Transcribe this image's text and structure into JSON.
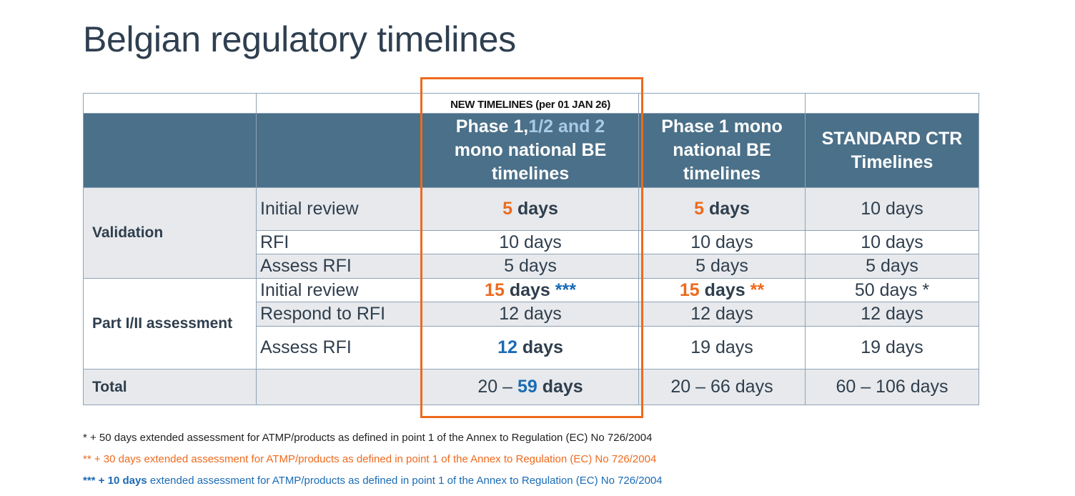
{
  "title": "Belgian regulatory timelines",
  "table": {
    "note": "NEW TIMELINES (per 01 JAN 26)",
    "header": [
      [
        "Phase 1,",
        "1/2 and 2",
        "mono national BE timelines"
      ],
      "Phase 1 mono national BE timelines",
      "STANDARD CTR Timelines"
    ],
    "groups": [
      {
        "label": "Validation",
        "rows": [
          {
            "label": "Initial review",
            "cells": [
              [
                "5",
                "days"
              ],
              [
                "5",
                "days"
              ],
              "10 days"
            ]
          },
          {
            "label": "RFI",
            "cells": [
              "10 days",
              "10 days",
              "10 days"
            ]
          },
          {
            "label": "Assess RFI",
            "cells": [
              "5 days",
              "5 days",
              "5 days"
            ]
          }
        ]
      },
      {
        "label": "Part I/II assessment",
        "rows": [
          {
            "label": "Initial review",
            "cells": [
              [
                "15",
                "days",
                "***"
              ],
              [
                "15",
                "days",
                "**"
              ],
              "50 days *"
            ]
          },
          {
            "label": "Respond to RFI",
            "cells": [
              "12 days",
              "12 days",
              "12 days"
            ]
          },
          {
            "label": "Assess RFI",
            "cells": [
              [
                "12",
                "days"
              ],
              "19 days",
              "19 days"
            ]
          }
        ]
      }
    ],
    "total": {
      "label": "Total",
      "cells": [
        [
          "20 –",
          "59",
          "days"
        ],
        "20 – 66 days",
        "60 – 106 days"
      ]
    }
  },
  "footnotes": [
    "* + 50 days extended assessment for ATMP/products as defined in point 1 of the Annex to Regulation (EC) No 726/2004",
    "** + 30 days extended assessment for ATMP/products as defined in point 1 of the Annex to Regulation (EC) No 726/2004",
    [
      "*** + 10 days",
      "extended assessment for ATMP/products as defined in point 1 of the Annex to Regulation (EC) No 726/2004"
    ]
  ]
}
